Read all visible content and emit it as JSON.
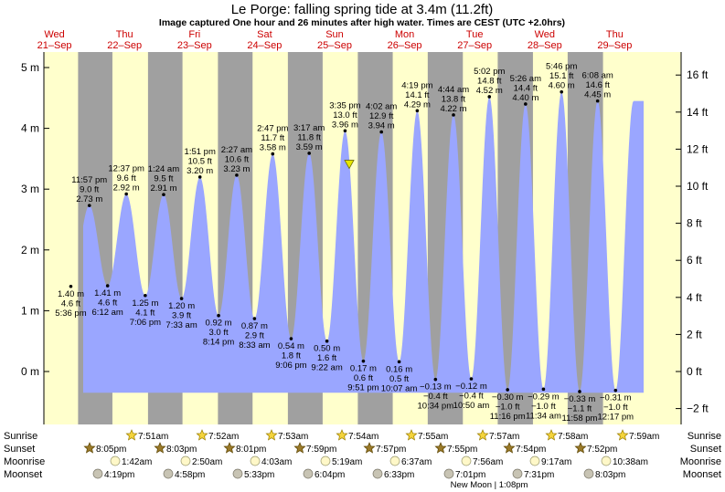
{
  "header": {
    "title": "Le Porge: falling  spring tide at 3.4m (11.2ft)",
    "subtitle": "Image captured One hour and 26 minutes after high water. Times are CEST (UTC +2.0hrs)"
  },
  "colors": {
    "day": "#ffffcc",
    "night": "#a0a0a0",
    "tide": "#9aa6ff",
    "date_text": "#cc0000",
    "marker": "#e6e600"
  },
  "chart_data": {
    "type": "area",
    "title": "Le Porge: falling  spring tide at 3.4m (11.2ft)",
    "ylim_m": [
      -0.6,
      5.2
    ],
    "ylim_ft": [
      -2,
      17
    ],
    "yticks_m": [
      {
        "v": 0,
        "label": "0 m"
      },
      {
        "v": 1,
        "label": "1 m"
      },
      {
        "v": 2,
        "label": "2 m"
      },
      {
        "v": 3,
        "label": "3 m"
      },
      {
        "v": 4,
        "label": "4 m"
      },
      {
        "v": 5,
        "label": "5 m"
      }
    ],
    "yticks_ft": [
      {
        "v": -2,
        "label": "−2 ft"
      },
      {
        "v": 0,
        "label": "0 ft"
      },
      {
        "v": 2,
        "label": "2 ft"
      },
      {
        "v": 4,
        "label": "4 ft"
      },
      {
        "v": 6,
        "label": "6 ft"
      },
      {
        "v": 8,
        "label": "8 ft"
      },
      {
        "v": 10,
        "label": "10 ft"
      },
      {
        "v": 12,
        "label": "12 ft"
      },
      {
        "v": 14,
        "label": "14 ft"
      },
      {
        "v": 16,
        "label": "16 ft"
      }
    ],
    "days": [
      {
        "day": "Wed",
        "date": "21–Sep"
      },
      {
        "day": "Thu",
        "date": "22–Sep"
      },
      {
        "day": "Fri",
        "date": "23–Sep"
      },
      {
        "day": "Sat",
        "date": "24–Sep"
      },
      {
        "day": "Sun",
        "date": "25–Sep"
      },
      {
        "day": "Mon",
        "date": "26–Sep"
      },
      {
        "day": "Tue",
        "date": "27–Sep"
      },
      {
        "day": "Wed",
        "date": "28–Sep"
      },
      {
        "day": "Thu",
        "date": "29–Sep"
      }
    ],
    "sun": [
      {
        "sunset": "20:05",
        "sunrise": "07:51"
      },
      {
        "sunset": "20:03",
        "sunrise": "07:52"
      },
      {
        "sunset": "20:01",
        "sunrise": "07:53"
      },
      {
        "sunset": "19:59",
        "sunrise": "07:54"
      },
      {
        "sunset": "19:57",
        "sunrise": "07:55"
      },
      {
        "sunset": "19:55",
        "sunrise": "07:57"
      },
      {
        "sunset": "19:54",
        "sunrise": "07:58"
      },
      {
        "sunset": "19:52",
        "sunrise": "07:59"
      }
    ],
    "extremes": [
      {
        "day": 0,
        "time": "17:36",
        "m": 1.4,
        "label_m": "1.40 m",
        "label_ft": "4.6 ft",
        "label_time": "5:36 pm"
      },
      {
        "day": 0,
        "time": "23:57",
        "m": 2.73,
        "label_m": "2.73 m",
        "label_ft": "9.0 ft",
        "label_time": "11:57 pm"
      },
      {
        "day": 1,
        "time": "06:12",
        "m": 1.41,
        "label_m": "1.41 m",
        "label_ft": "4.6 ft",
        "label_time": "6:12 am"
      },
      {
        "day": 1,
        "time": "12:37",
        "m": 2.92,
        "label_m": "2.92 m",
        "label_ft": "9.6 ft",
        "label_time": "12:37 pm"
      },
      {
        "day": 1,
        "time": "19:06",
        "m": 1.25,
        "label_m": "1.25 m",
        "label_ft": "4.1 ft",
        "label_time": "7:06 pm"
      },
      {
        "day": 2,
        "time": "01:24",
        "m": 2.91,
        "label_m": "2.91 m",
        "label_ft": "9.5 ft",
        "label_time": "1:24 am"
      },
      {
        "day": 2,
        "time": "07:33",
        "m": 1.2,
        "label_m": "1.20 m",
        "label_ft": "3.9 ft",
        "label_time": "7:33 am"
      },
      {
        "day": 2,
        "time": "13:51",
        "m": 3.2,
        "label_m": "3.20 m",
        "label_ft": "10.5 ft",
        "label_time": "1:51 pm"
      },
      {
        "day": 2,
        "time": "20:14",
        "m": 0.92,
        "label_m": "0.92 m",
        "label_ft": "3.0 ft",
        "label_time": "8:14 pm"
      },
      {
        "day": 3,
        "time": "02:27",
        "m": 3.23,
        "label_m": "3.23 m",
        "label_ft": "10.6 ft",
        "label_time": "2:27 am"
      },
      {
        "day": 3,
        "time": "08:33",
        "m": 0.87,
        "label_m": "0.87 m",
        "label_ft": "2.9 ft",
        "label_time": "8:33 am"
      },
      {
        "day": 3,
        "time": "14:47",
        "m": 3.58,
        "label_m": "3.58 m",
        "label_ft": "11.7 ft",
        "label_time": "2:47 pm"
      },
      {
        "day": 3,
        "time": "21:06",
        "m": 0.54,
        "label_m": "0.54 m",
        "label_ft": "1.8 ft",
        "label_time": "9:06 pm"
      },
      {
        "day": 4,
        "time": "03:17",
        "m": 3.59,
        "label_m": "3.59 m",
        "label_ft": "11.8 ft",
        "label_time": "3:17 am"
      },
      {
        "day": 4,
        "time": "09:22",
        "m": 0.5,
        "label_m": "0.50 m",
        "label_ft": "1.6 ft",
        "label_time": "9:22 am"
      },
      {
        "day": 4,
        "time": "15:35",
        "m": 3.96,
        "label_m": "3.96 m",
        "label_ft": "13.0 ft",
        "label_time": "3:35 pm"
      },
      {
        "day": 4,
        "time": "21:51",
        "m": 0.17,
        "label_m": "0.17 m",
        "label_ft": "0.6 ft",
        "label_time": "9:51 pm"
      },
      {
        "day": 5,
        "time": "04:02",
        "m": 3.94,
        "label_m": "3.94 m",
        "label_ft": "12.9 ft",
        "label_time": "4:02 am"
      },
      {
        "day": 5,
        "time": "10:07",
        "m": 0.16,
        "label_m": "0.16 m",
        "label_ft": "0.5 ft",
        "label_time": "10:07 am"
      },
      {
        "day": 5,
        "time": "16:19",
        "m": 4.29,
        "label_m": "4.29 m",
        "label_ft": "14.1 ft",
        "label_time": "4:19 pm"
      },
      {
        "day": 5,
        "time": "22:34",
        "m": -0.13,
        "label_m": "−0.13 m",
        "label_ft": "−0.4 ft",
        "label_time": "10:34 pm"
      },
      {
        "day": 6,
        "time": "04:44",
        "m": 4.22,
        "label_m": "4.22 m",
        "label_ft": "13.8 ft",
        "label_time": "4:44 am"
      },
      {
        "day": 6,
        "time": "10:50",
        "m": -0.12,
        "label_m": "−0.12 m",
        "label_ft": "−0.4 ft",
        "label_time": "10:50 am"
      },
      {
        "day": 6,
        "time": "17:02",
        "m": 4.52,
        "label_m": "4.52 m",
        "label_ft": "14.8 ft",
        "label_time": "5:02 pm"
      },
      {
        "day": 6,
        "time": "23:16",
        "m": -0.3,
        "label_m": "−0.30 m",
        "label_ft": "−1.0 ft",
        "label_time": "11:16 pm"
      },
      {
        "day": 7,
        "time": "05:26",
        "m": 4.4,
        "label_m": "4.40 m",
        "label_ft": "14.4 ft",
        "label_time": "5:26 am"
      },
      {
        "day": 7,
        "time": "11:34",
        "m": -0.29,
        "label_m": "−0.29 m",
        "label_ft": "−1.0 ft",
        "label_time": "11:34 am"
      },
      {
        "day": 7,
        "time": "17:46",
        "m": 4.6,
        "label_m": "4.60 m",
        "label_ft": "15.1 ft",
        "label_time": "5:46 pm"
      },
      {
        "day": 7,
        "time": "23:58",
        "m": -0.33,
        "label_m": "−0.33 m",
        "label_ft": "−1.1 ft",
        "label_time": "11:58 pm"
      },
      {
        "day": 8,
        "time": "06:08",
        "m": 4.45,
        "label_m": "4.45 m",
        "label_ft": "14.6 ft",
        "label_time": "6:08 am"
      },
      {
        "day": 8,
        "time": "12:17",
        "m": -0.31,
        "label_m": "−0.31 m",
        "label_ft": "−1.0 ft",
        "label_time": "12:17 pm"
      }
    ],
    "current": {
      "day": 4,
      "time": "17:01",
      "m": 3.4
    }
  },
  "astro": {
    "row_labels": {
      "sunrise": "Sunrise",
      "sunset": "Sunset",
      "moonrise": "Moonrise",
      "moonset": "Moonset"
    },
    "sunrise": [
      "7:51am",
      "7:52am",
      "7:53am",
      "7:54am",
      "7:55am",
      "7:57am",
      "7:58am",
      "7:59am"
    ],
    "sunset": [
      "8:05pm",
      "8:03pm",
      "8:01pm",
      "7:59pm",
      "7:57pm",
      "7:55pm",
      "7:54pm",
      "7:52pm"
    ],
    "moonrise": [
      "1:42am",
      "2:50am",
      "4:03am",
      "5:19am",
      "6:37am",
      "7:56am",
      "9:17am",
      "10:38am"
    ],
    "moonset": [
      "4:19pm",
      "4:58pm",
      "5:33pm",
      "6:04pm",
      "6:33pm",
      "7:01pm",
      "7:31pm",
      "8:03pm"
    ],
    "new_moon": "New Moon | 1:08pm"
  }
}
